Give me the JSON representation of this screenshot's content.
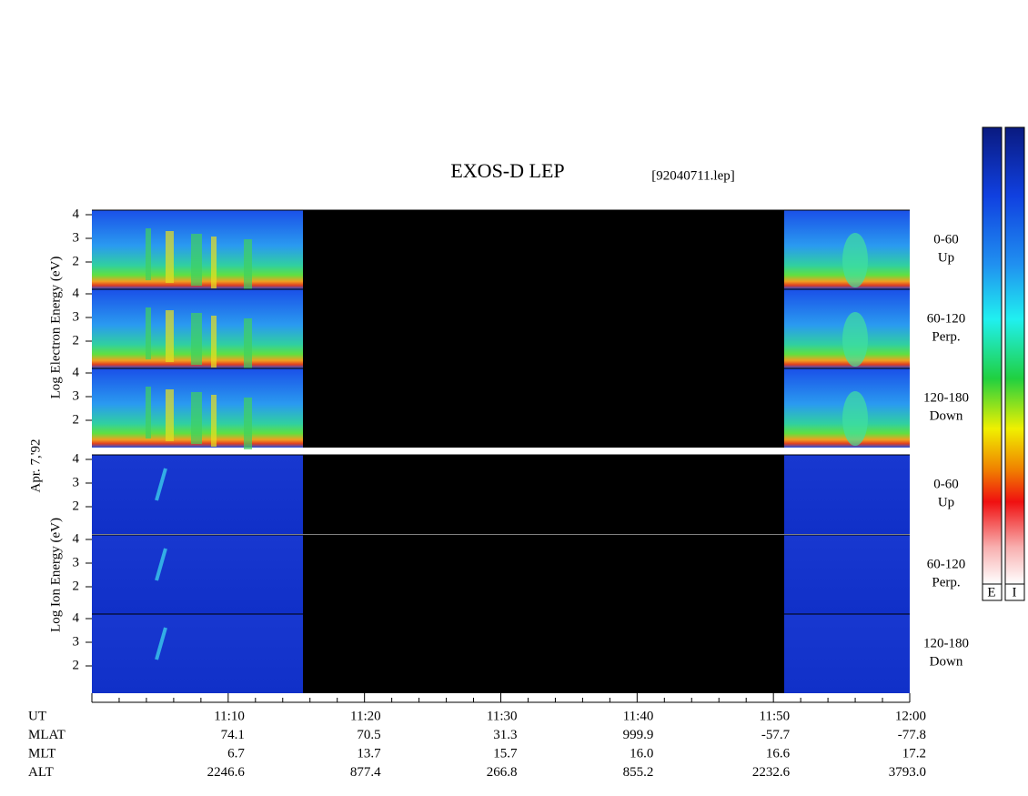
{
  "header": {
    "title": "EXOS-D LEP",
    "file": "[92040711.lep]"
  },
  "date": "Apr. 7,'92",
  "electron_axis_label": "Log   Electron   Energy (eV)",
  "ion_axis_label": "Log   Ion   Energy (eV)",
  "panels": [
    {
      "range": "0-60",
      "direction": "Up"
    },
    {
      "range": "60-120",
      "direction": "Perp."
    },
    {
      "range": "120-180",
      "direction": "Down"
    }
  ],
  "y_tick_labels": [
    "4",
    "3",
    "2"
  ],
  "time_ticks": [
    "11:10",
    "11:20",
    "11:30",
    "11:40",
    "11:50",
    "12:00"
  ],
  "ephemeris": [
    {
      "label": "UT",
      "values": []
    },
    {
      "label": "MLAT",
      "values": [
        "74.1",
        "70.5",
        "31.3",
        "999.9",
        "-57.7",
        "-77.8"
      ]
    },
    {
      "label": "MLT",
      "values": [
        "6.7",
        "13.7",
        "15.7",
        "16.0",
        "16.6",
        "17.2"
      ]
    },
    {
      "label": "ALT",
      "values": [
        "2246.6",
        "877.4",
        "266.8",
        "855.2",
        "2232.6",
        "3793.0"
      ]
    }
  ],
  "colorbars": [
    "E",
    "I"
  ]
}
